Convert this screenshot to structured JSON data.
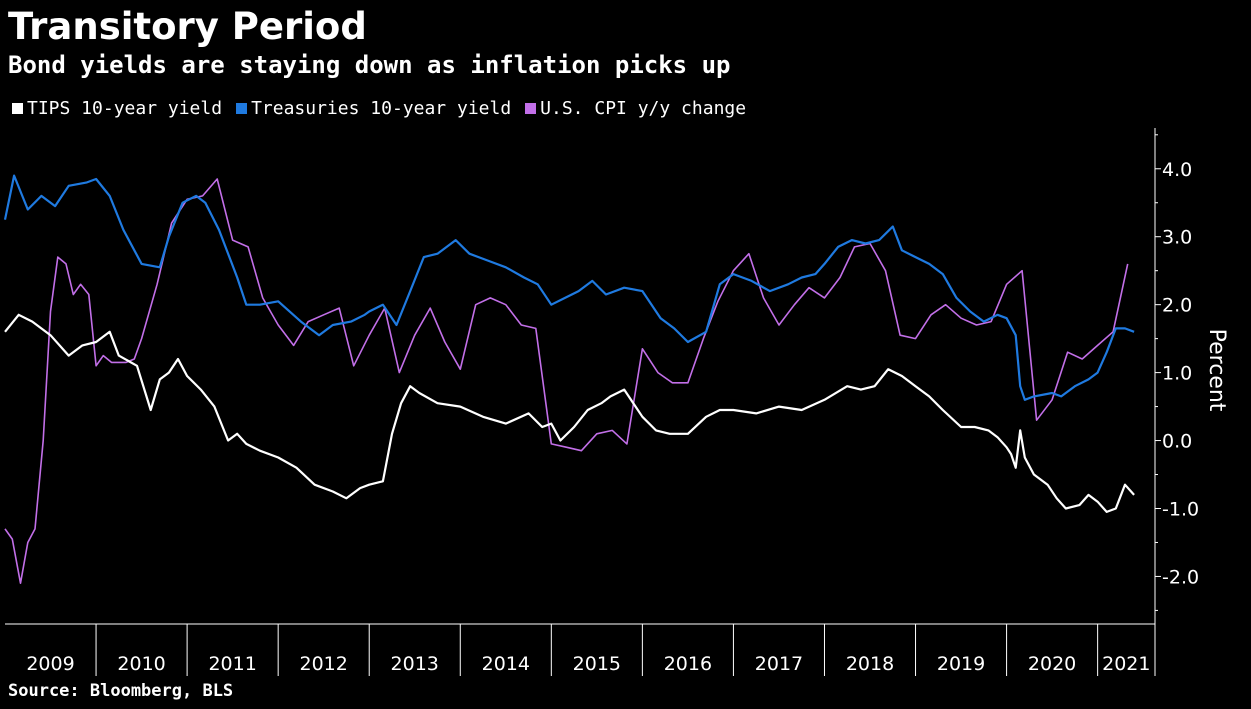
{
  "title": "Transitory Period",
  "subtitle": "Bond yields are staying down as inflation picks up",
  "source": "Source: Bloomberg, BLS",
  "colors": {
    "tips": "#ffffff",
    "treasuries": "#1f7ae0",
    "cpi": "#c26fe8"
  },
  "chart_data": {
    "type": "line",
    "title": "Transitory Period",
    "subtitle": "Bond yields are staying down as inflation picks up",
    "xlabel": "",
    "ylabel": "Percent",
    "xlim": [
      2009.0,
      2021.63
    ],
    "ylim": [
      -2.7,
      4.6
    ],
    "yticks": [
      4.0,
      3.0,
      2.0,
      1.0,
      0.0,
      -1.0,
      -2.0
    ],
    "ytick_labels": [
      "4.0",
      "3.0",
      "2.0",
      "1.0",
      "0.0",
      "-1.0",
      "-2.0"
    ],
    "xticks": [
      2009,
      2010,
      2011,
      2012,
      2013,
      2014,
      2015,
      2016,
      2017,
      2018,
      2019,
      2020,
      2021
    ],
    "xtick_labels": [
      "2009",
      "2010",
      "2011",
      "2012",
      "2013",
      "2014",
      "2015",
      "2016",
      "2017",
      "2018",
      "2019",
      "2020",
      "2021"
    ],
    "grid": false,
    "legend": "top-left",
    "series": [
      {
        "name": "TIPS 10-year yield",
        "color": "#ffffff",
        "x": [
          2009.0,
          2009.15,
          2009.3,
          2009.5,
          2009.7,
          2009.85,
          2010.0,
          2010.15,
          2010.25,
          2010.45,
          2010.6,
          2010.7,
          2010.8,
          2010.9,
          2011.0,
          2011.15,
          2011.3,
          2011.45,
          2011.55,
          2011.65,
          2011.8,
          2012.0,
          2012.2,
          2012.4,
          2012.6,
          2012.75,
          2012.9,
          2013.0,
          2013.15,
          2013.25,
          2013.35,
          2013.45,
          2013.55,
          2013.75,
          2014.0,
          2014.25,
          2014.5,
          2014.75,
          2014.9,
          2015.0,
          2015.1,
          2015.25,
          2015.4,
          2015.55,
          2015.65,
          2015.8,
          2016.0,
          2016.15,
          2016.3,
          2016.5,
          2016.7,
          2016.85,
          2017.0,
          2017.25,
          2017.5,
          2017.75,
          2018.0,
          2018.25,
          2018.4,
          2018.55,
          2018.7,
          2018.85,
          2019.0,
          2019.15,
          2019.3,
          2019.5,
          2019.65,
          2019.8,
          2019.9,
          2020.0,
          2020.05,
          2020.1,
          2020.15,
          2020.2,
          2020.3,
          2020.45,
          2020.55,
          2020.65,
          2020.8,
          2020.9,
          2021.0,
          2021.1,
          2021.2,
          2021.3,
          2021.4
        ],
        "y": [
          1.6,
          1.85,
          1.75,
          1.55,
          1.25,
          1.4,
          1.45,
          1.6,
          1.25,
          1.1,
          0.45,
          0.9,
          1.0,
          1.2,
          0.95,
          0.75,
          0.5,
          0.0,
          0.1,
          -0.05,
          -0.15,
          -0.25,
          -0.4,
          -0.65,
          -0.75,
          -0.85,
          -0.7,
          -0.65,
          -0.6,
          0.1,
          0.55,
          0.8,
          0.7,
          0.55,
          0.5,
          0.35,
          0.25,
          0.4,
          0.2,
          0.25,
          0.0,
          0.2,
          0.45,
          0.55,
          0.65,
          0.75,
          0.35,
          0.15,
          0.1,
          0.1,
          0.35,
          0.45,
          0.45,
          0.4,
          0.5,
          0.45,
          0.6,
          0.8,
          0.75,
          0.8,
          1.05,
          0.95,
          0.8,
          0.65,
          0.45,
          0.2,
          0.2,
          0.15,
          0.05,
          -0.1,
          -0.2,
          -0.4,
          0.15,
          -0.25,
          -0.5,
          -0.65,
          -0.85,
          -1.0,
          -0.95,
          -0.8,
          -0.9,
          -1.05,
          -1.0,
          -0.65,
          -0.8
        ]
      },
      {
        "name": "Treasuries 10-year yield",
        "color": "#1f7ae0",
        "x": [
          2009.0,
          2009.1,
          2009.25,
          2009.4,
          2009.55,
          2009.7,
          2009.9,
          2010.0,
          2010.15,
          2010.3,
          2010.5,
          2010.7,
          2010.8,
          2010.95,
          2011.1,
          2011.2,
          2011.35,
          2011.55,
          2011.65,
          2011.8,
          2012.0,
          2012.25,
          2012.45,
          2012.6,
          2012.8,
          2012.95,
          2013.0,
          2013.15,
          2013.3,
          2013.45,
          2013.6,
          2013.75,
          2013.95,
          2014.1,
          2014.3,
          2014.5,
          2014.7,
          2014.85,
          2015.0,
          2015.15,
          2015.3,
          2015.45,
          2015.6,
          2015.8,
          2016.0,
          2016.2,
          2016.35,
          2016.5,
          2016.7,
          2016.85,
          2017.0,
          2017.2,
          2017.4,
          2017.6,
          2017.75,
          2017.9,
          2018.0,
          2018.15,
          2018.3,
          2018.45,
          2018.6,
          2018.75,
          2018.85,
          2019.0,
          2019.15,
          2019.3,
          2019.45,
          2019.6,
          2019.75,
          2019.9,
          2020.0,
          2020.1,
          2020.15,
          2020.2,
          2020.3,
          2020.5,
          2020.6,
          2020.75,
          2020.9,
          2021.0,
          2021.1,
          2021.2,
          2021.3,
          2021.4
        ],
        "y": [
          3.25,
          3.9,
          3.4,
          3.6,
          3.45,
          3.75,
          3.8,
          3.85,
          3.6,
          3.1,
          2.6,
          2.55,
          3.0,
          3.5,
          3.6,
          3.5,
          3.1,
          2.4,
          2.0,
          2.0,
          2.05,
          1.75,
          1.55,
          1.7,
          1.75,
          1.85,
          1.9,
          2.0,
          1.7,
          2.2,
          2.7,
          2.75,
          2.95,
          2.75,
          2.65,
          2.55,
          2.4,
          2.3,
          2.0,
          2.1,
          2.2,
          2.35,
          2.15,
          2.25,
          2.2,
          1.8,
          1.65,
          1.45,
          1.6,
          2.3,
          2.45,
          2.35,
          2.2,
          2.3,
          2.4,
          2.45,
          2.6,
          2.85,
          2.95,
          2.9,
          2.95,
          3.15,
          2.8,
          2.7,
          2.6,
          2.45,
          2.1,
          1.9,
          1.75,
          1.85,
          1.8,
          1.55,
          0.8,
          0.6,
          0.65,
          0.7,
          0.65,
          0.8,
          0.9,
          1.0,
          1.3,
          1.65,
          1.65,
          1.6
        ]
      },
      {
        "name": "U.S. CPI y/y change",
        "color": "#c26fe8",
        "x": [
          2009.0,
          2009.08,
          2009.17,
          2009.25,
          2009.33,
          2009.42,
          2009.5,
          2009.58,
          2009.67,
          2009.75,
          2009.83,
          2009.92,
          2010.0,
          2010.08,
          2010.17,
          2010.25,
          2010.33,
          2010.42,
          2010.5,
          2010.67,
          2010.83,
          2011.0,
          2011.17,
          2011.33,
          2011.5,
          2011.67,
          2011.83,
          2012.0,
          2012.17,
          2012.33,
          2012.5,
          2012.67,
          2012.83,
          2013.0,
          2013.17,
          2013.33,
          2013.5,
          2013.67,
          2013.83,
          2014.0,
          2014.17,
          2014.33,
          2014.5,
          2014.67,
          2014.83,
          2015.0,
          2015.17,
          2015.33,
          2015.5,
          2015.67,
          2015.83,
          2016.0,
          2016.17,
          2016.33,
          2016.5,
          2016.67,
          2016.83,
          2017.0,
          2017.17,
          2017.33,
          2017.5,
          2017.67,
          2017.83,
          2018.0,
          2018.17,
          2018.33,
          2018.5,
          2018.67,
          2018.83,
          2019.0,
          2019.17,
          2019.33,
          2019.5,
          2019.67,
          2019.83,
          2020.0,
          2020.17,
          2020.33,
          2020.5,
          2020.67,
          2020.83,
          2021.0,
          2021.17,
          2021.33
        ],
        "y": [
          -1.3,
          -1.45,
          -2.1,
          -1.5,
          -1.3,
          0.0,
          1.9,
          2.7,
          2.6,
          2.15,
          2.3,
          2.15,
          1.1,
          1.25,
          1.15,
          1.15,
          1.15,
          1.2,
          1.5,
          2.3,
          3.2,
          3.55,
          3.6,
          3.85,
          2.95,
          2.85,
          2.1,
          1.7,
          1.4,
          1.75,
          1.85,
          1.95,
          1.1,
          1.55,
          1.95,
          1.0,
          1.55,
          1.95,
          1.45,
          1.05,
          2.0,
          2.1,
          2.0,
          1.7,
          1.65,
          -0.05,
          -0.1,
          -0.15,
          0.1,
          0.15,
          -0.05,
          1.35,
          1.0,
          0.85,
          0.85,
          1.5,
          2.05,
          2.5,
          2.75,
          2.1,
          1.7,
          2.0,
          2.25,
          2.1,
          2.4,
          2.85,
          2.9,
          2.5,
          1.55,
          1.5,
          1.85,
          2.0,
          1.8,
          1.7,
          1.75,
          2.3,
          2.5,
          0.3,
          0.6,
          1.3,
          1.2,
          1.4,
          1.6,
          2.6
        ]
      }
    ]
  }
}
